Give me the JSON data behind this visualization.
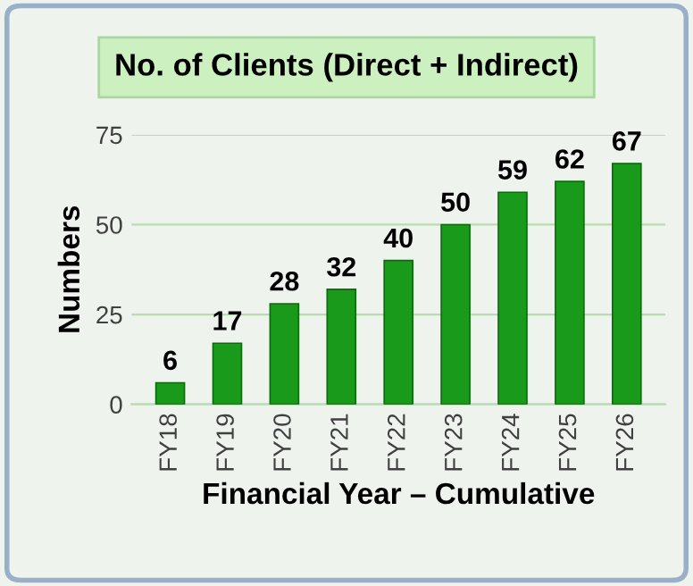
{
  "chart_data": {
    "type": "bar",
    "title": "No. of Clients (Direct + Indirect)",
    "xlabel": "Financial Year – Cumulative",
    "ylabel": "Numbers",
    "categories": [
      "FY18",
      "FY19",
      "FY20",
      "FY21",
      "FY22",
      "FY23",
      "FY24",
      "FY25",
      "FY26"
    ],
    "values": [
      6,
      17,
      28,
      32,
      40,
      50,
      59,
      62,
      67
    ],
    "color": "#1a9a1a",
    "data_labels": true,
    "ylim": [
      0,
      75
    ],
    "yticks": [
      0,
      25,
      50,
      75
    ],
    "grid": "y",
    "legend": false
  }
}
